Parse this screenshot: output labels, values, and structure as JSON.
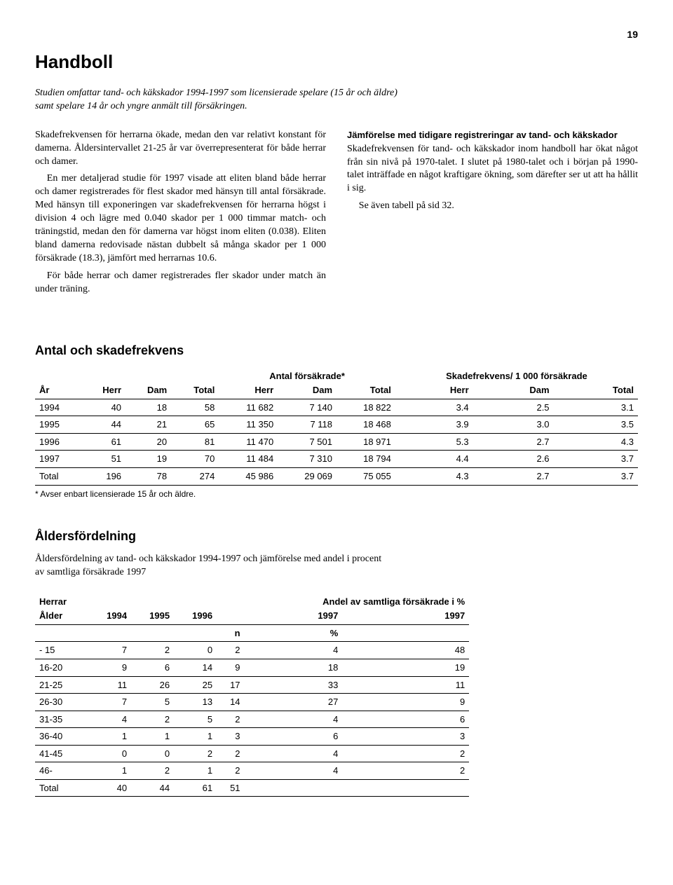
{
  "page_number": "19",
  "title": "Handboll",
  "intro": "Studien omfattar tand- och käkskador 1994-1997 som licensierade spelare (15 år och äldre) samt spelare 14 år och yngre anmält till försäkringen.",
  "left_p1": "Skadefrekvensen för herrarna ökade, medan den var relativt konstant för damerna. Åldersintervallet 21-25 år var överrepresenterat för både herrar och damer.",
  "left_p2": "En mer detaljerad studie för 1997 visade att eliten bland både herrar och damer registrerades för flest skador med hänsyn till antal försäkrade. Med hänsyn till exponeringen var skadefrekvensen för herrarna högst i division 4 och lägre med 0.040 skador per 1 000 timmar match- och träningstid, medan den för damerna var högst inom eliten (0.038). Eliten bland damerna redovisade nästan dubbelt så många skador per 1 000 försäkrade (18.3), jämfört med herrarnas 10.6.",
  "left_p3": "För både herrar och damer registrerades fler skador under match än under träning.",
  "right_head": "Jämförelse med tidigare registreringar av tand- och käkskador",
  "right_p1": "Skadefrekvensen för tand- och käkskador inom handboll har ökat något från sin nivå på 1970-talet. I slutet på 1980-talet och i början på 1990-talet inträffade en något kraftigare ökning, som därefter ser ut att ha hållit i sig.",
  "right_p2": "Se även tabell på sid 32.",
  "table1_title": "Antal och skadefrekvens",
  "table1_super1": "Antal försäkrade*",
  "table1_super2": "Skadefrekvens/ 1 000 försäkrade",
  "table1_headers": [
    "År",
    "Herr",
    "Dam",
    "Total",
    "Herr",
    "Dam",
    "Total",
    "Herr",
    "Dam",
    "Total"
  ],
  "table1_rows": [
    [
      "1994",
      "40",
      "18",
      "58",
      "11 682",
      "7 140",
      "18 822",
      "3.4",
      "2.5",
      "3.1"
    ],
    [
      "1995",
      "44",
      "21",
      "65",
      "11 350",
      "7 118",
      "18 468",
      "3.9",
      "3.0",
      "3.5"
    ],
    [
      "1996",
      "61",
      "20",
      "81",
      "11 470",
      "7 501",
      "18 971",
      "5.3",
      "2.7",
      "4.3"
    ],
    [
      "1997",
      "51",
      "19",
      "70",
      "11 484",
      "7 310",
      "18 794",
      "4.4",
      "2.6",
      "3.7"
    ],
    [
      "Total",
      "196",
      "78",
      "274",
      "45 986",
      "29 069",
      "75 055",
      "4.3",
      "2.7",
      "3.7"
    ]
  ],
  "table1_footnote": "* Avser enbart licensierade 15 år och äldre.",
  "table2_title": "Åldersfördelning",
  "table2_sub": "Åldersfördelning av tand- och käkskador 1994-1997 och jämförelse med andel i procent av samtliga försäkrade 1997",
  "table2_label_left": "Herrar",
  "table2_label_right": "Andel av samtliga försäkrade i %",
  "table2_headers": [
    "Ålder",
    "1994",
    "1995",
    "1996",
    "",
    "1997",
    "",
    "1997"
  ],
  "table2_sub_headers": [
    "",
    "",
    "",
    "",
    "n",
    "%",
    "",
    ""
  ],
  "table2_rows": [
    [
      "- 15",
      "7",
      "2",
      "0",
      "2",
      "4",
      "",
      "48"
    ],
    [
      "16-20",
      "9",
      "6",
      "14",
      "9",
      "18",
      "",
      "19"
    ],
    [
      "21-25",
      "11",
      "26",
      "25",
      "17",
      "33",
      "",
      "11"
    ],
    [
      "26-30",
      "7",
      "5",
      "13",
      "14",
      "27",
      "",
      "9"
    ],
    [
      "31-35",
      "4",
      "2",
      "5",
      "2",
      "4",
      "",
      "6"
    ],
    [
      "36-40",
      "1",
      "1",
      "1",
      "3",
      "6",
      "",
      "3"
    ],
    [
      "41-45",
      "0",
      "0",
      "2",
      "2",
      "4",
      "",
      "2"
    ],
    [
      "46-",
      "1",
      "2",
      "1",
      "2",
      "4",
      "",
      "2"
    ],
    [
      "Total",
      "40",
      "44",
      "61",
      "51",
      "",
      "",
      ""
    ]
  ]
}
